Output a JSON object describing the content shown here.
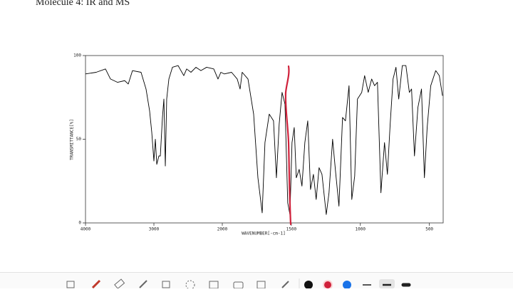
{
  "title": "Molecule 4: IR and MS",
  "chart_data": {
    "type": "line",
    "x_label": "WAVENUMBER[-cm-1]",
    "y_label": "TRANSMITTANCE[%]",
    "xlim": [
      4000,
      400
    ],
    "ylim": [
      0,
      100
    ],
    "xticks": [
      4000,
      3000,
      2000,
      1500,
      1000,
      500
    ],
    "yticks": [
      0,
      50,
      100
    ],
    "color": "#000000",
    "x": [
      4000,
      3844,
      3708,
      3635,
      3531,
      3427,
      3375,
      3313,
      3188,
      3115,
      3063,
      3031,
      3000,
      2979,
      2958,
      2927,
      2906,
      2875,
      2854,
      2833,
      2813,
      2781,
      2729,
      2646,
      2563,
      2521,
      2458,
      2385,
      2313,
      2229,
      2125,
      2063,
      2021,
      1985,
      1933,
      1892,
      1871,
      1856,
      1814,
      1773,
      1742,
      1711,
      1691,
      1660,
      1629,
      1608,
      1588,
      1567,
      1546,
      1526,
      1510,
      1495,
      1479,
      1464,
      1443,
      1423,
      1402,
      1381,
      1361,
      1340,
      1320,
      1299,
      1278,
      1247,
      1227,
      1201,
      1180,
      1155,
      1129,
      1108,
      1082,
      1062,
      1041,
      1021,
      990,
      969,
      943,
      918,
      897,
      876,
      851,
      825,
      804,
      784,
      763,
      742,
      722,
      696,
      670,
      645,
      629,
      608,
      583,
      557,
      536,
      516,
      490,
      454,
      428,
      405
    ],
    "values": [
      89,
      90,
      92,
      86,
      84,
      85,
      83,
      91,
      90,
      80,
      67,
      54,
      37,
      50,
      35,
      40,
      40,
      63,
      74,
      34,
      74,
      86,
      93,
      94,
      88,
      92,
      90,
      93,
      91,
      93,
      92,
      86,
      90,
      89,
      90,
      86,
      80,
      90,
      86,
      65,
      27,
      6,
      48,
      65,
      61,
      27,
      59,
      78,
      71,
      12,
      5,
      48,
      57,
      27,
      32,
      22,
      48,
      61,
      20,
      29,
      14,
      33,
      29,
      5,
      18,
      50,
      31,
      10,
      63,
      61,
      82,
      14,
      28,
      74,
      78,
      88,
      78,
      86,
      82,
      84,
      18,
      48,
      29,
      59,
      86,
      93,
      74,
      94,
      94,
      78,
      80,
      40,
      69,
      80,
      27,
      57,
      82,
      91,
      88,
      76
    ]
  }
}
